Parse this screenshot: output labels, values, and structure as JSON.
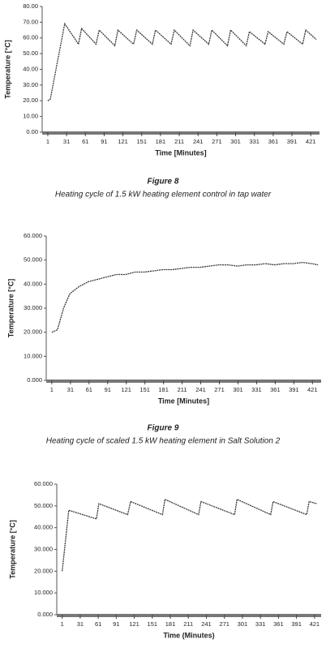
{
  "chart_data": [
    {
      "type": "line",
      "y_label": "Temperature [°C]",
      "x_label": "Time [Minutes]",
      "figure_label": "Figure 8",
      "caption": "Heating cycle of 1.5 kW heating element control in tap water",
      "color": "#3a3a3a",
      "x": [
        1,
        5,
        28,
        50,
        55,
        78,
        83,
        108,
        113,
        138,
        143,
        168,
        173,
        198,
        203,
        228,
        233,
        258,
        263,
        288,
        293,
        318,
        323,
        348,
        353,
        378,
        383,
        408,
        413,
        430
      ],
      "values": [
        20,
        21,
        69,
        56,
        66,
        56,
        65,
        55,
        65,
        56,
        65,
        56,
        65,
        56,
        65,
        55,
        65,
        56,
        65,
        55,
        65,
        55,
        64,
        56,
        64,
        56,
        64,
        56,
        65,
        59
      ],
      "xlim": [
        -8,
        435
      ],
      "xticks": [
        1,
        31,
        61,
        91,
        121,
        151,
        181,
        211,
        241,
        271,
        301,
        331,
        361,
        391,
        421
      ],
      "ylim": [
        0,
        80
      ],
      "yticks": [
        {
          "value": 0,
          "label": "0.00"
        },
        {
          "value": 10,
          "label": "10.00"
        },
        {
          "value": 20,
          "label": "20.00"
        },
        {
          "value": 30,
          "label": "30.00"
        },
        {
          "value": 40,
          "label": "40.00"
        },
        {
          "value": 50,
          "label": "50.00"
        },
        {
          "value": 60,
          "label": "60.00"
        },
        {
          "value": 70,
          "label": "70.00"
        },
        {
          "value": 80,
          "label": "80.00"
        }
      ]
    },
    {
      "type": "line",
      "y_label": "Temperature [°C]",
      "x_label": "Time [Minutes]",
      "figure_label": "Figure 9",
      "caption": "Heating cycle of scaled 1.5 kW heating element in Salt Solution 2",
      "color": "#3a3a3a",
      "x": [
        1,
        10,
        20,
        30,
        45,
        60,
        75,
        90,
        105,
        120,
        135,
        150,
        165,
        180,
        195,
        210,
        225,
        240,
        255,
        270,
        285,
        300,
        315,
        330,
        345,
        360,
        375,
        390,
        405,
        420,
        430
      ],
      "values": [
        20,
        21,
        30,
        36,
        39,
        41,
        42,
        43,
        44,
        44,
        45,
        45,
        45.5,
        46,
        46,
        46.5,
        47,
        47,
        47.5,
        48,
        48,
        47.5,
        48,
        48,
        48.5,
        48,
        48.5,
        48.5,
        49,
        48.5,
        48
      ],
      "xlim": [
        -8,
        435
      ],
      "xticks": [
        1,
        31,
        61,
        91,
        121,
        151,
        181,
        211,
        241,
        271,
        301,
        331,
        361,
        391,
        421
      ],
      "ylim": [
        0,
        60
      ],
      "yticks": [
        {
          "value": 0,
          "label": "0.000"
        },
        {
          "value": 10,
          "label": "10.000"
        },
        {
          "value": 20,
          "label": "20.000"
        },
        {
          "value": 30,
          "label": "30.000"
        },
        {
          "value": 40,
          "label": "40.000"
        },
        {
          "value": 50,
          "label": "50.000"
        },
        {
          "value": 60,
          "label": "60.000"
        }
      ]
    },
    {
      "type": "line",
      "y_label": "Temperature [°C]",
      "x_label": "Time (Minutes)",
      "color": "#3a3a3a",
      "x": [
        1,
        12,
        58,
        62,
        110,
        115,
        168,
        172,
        228,
        232,
        288,
        292,
        348,
        352,
        408,
        412,
        425
      ],
      "values": [
        20,
        48,
        44,
        51,
        46,
        52,
        46,
        53,
        46,
        52,
        46,
        53,
        46,
        52,
        46,
        52,
        51
      ],
      "xlim": [
        -8,
        432
      ],
      "xticks": [
        1,
        31,
        61,
        91,
        121,
        151,
        181,
        211,
        241,
        271,
        301,
        331,
        361,
        391,
        421
      ],
      "ylim": [
        0,
        60
      ],
      "yticks": [
        {
          "value": 0,
          "label": "0.000"
        },
        {
          "value": 10,
          "label": "10.000"
        },
        {
          "value": 20,
          "label": "20.000"
        },
        {
          "value": 30,
          "label": "30.000"
        },
        {
          "value": 40,
          "label": "40.000"
        },
        {
          "value": 50,
          "label": "50.000"
        },
        {
          "value": 60,
          "label": "60.000"
        }
      ]
    }
  ]
}
